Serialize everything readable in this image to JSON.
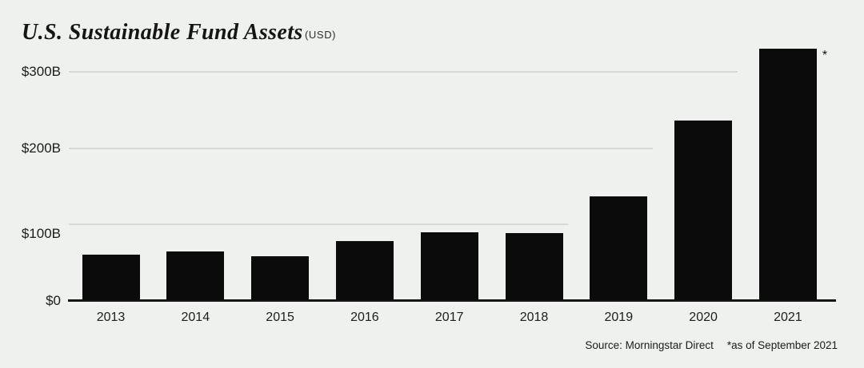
{
  "chart_data": {
    "type": "bar",
    "title": "U.S. Sustainable Fund Assets",
    "unit_label": "(USD)",
    "categories": [
      "2013",
      "2014",
      "2015",
      "2016",
      "2017",
      "2018",
      "2019",
      "2020",
      "2021"
    ],
    "values": [
      60,
      64,
      58,
      78,
      90,
      89,
      137,
      236,
      330
    ],
    "value_unit": "billions of USD",
    "ytick_values": [
      300,
      200,
      100,
      0
    ],
    "ytick_labels": [
      "$300B",
      "$200B",
      "$100B",
      "$0"
    ],
    "ylim": [
      0,
      340
    ],
    "grid": "horizontal gridlines, each stopping before the first bar taller than it",
    "legend": "none",
    "last_bar_annotation": "*",
    "colors": {
      "background": "#eff1ee",
      "bar": "#0b0b0b",
      "gridline": "#d7d9d6",
      "axis": "#161616",
      "text": "#1c1c1c"
    }
  },
  "footer": {
    "source": "Source: Morningstar Direct",
    "footnote": "*as of September 2021"
  }
}
